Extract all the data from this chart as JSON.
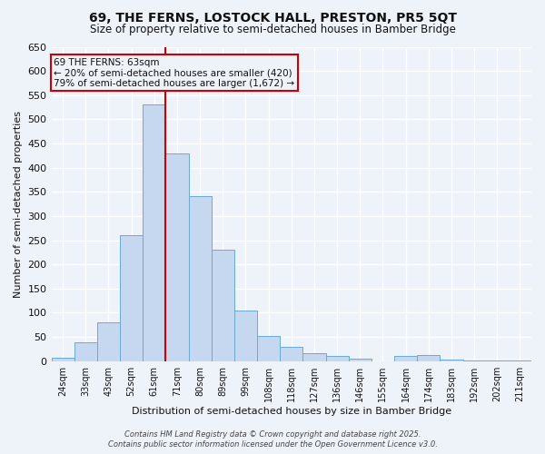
{
  "title": "69, THE FERNS, LOSTOCK HALL, PRESTON, PR5 5QT",
  "subtitle": "Size of property relative to semi-detached houses in Bamber Bridge",
  "xlabel": "Distribution of semi-detached houses by size in Bamber Bridge",
  "ylabel": "Number of semi-detached properties",
  "bar_categories": [
    "24sqm",
    "33sqm",
    "43sqm",
    "52sqm",
    "61sqm",
    "71sqm",
    "80sqm",
    "89sqm",
    "99sqm",
    "108sqm",
    "118sqm",
    "127sqm",
    "136sqm",
    "146sqm",
    "155sqm",
    "164sqm",
    "174sqm",
    "183sqm",
    "192sqm",
    "202sqm",
    "211sqm"
  ],
  "bar_values": [
    7,
    38,
    80,
    260,
    530,
    430,
    342,
    230,
    105,
    52,
    30,
    16,
    10,
    6,
    0,
    10,
    13,
    4,
    2,
    1,
    1
  ],
  "bar_color": "#c5d8f0",
  "bar_edge_color": "#6aaad4",
  "ylim": [
    0,
    650
  ],
  "yticks": [
    0,
    50,
    100,
    150,
    200,
    250,
    300,
    350,
    400,
    450,
    500,
    550,
    600,
    650
  ],
  "vline_color": "#cc0000",
  "vline_pos": 4.5,
  "annotation_title": "69 THE FERNS: 63sqm",
  "annotation_line1": "← 20% of semi-detached houses are smaller (420)",
  "annotation_line2": "79% of semi-detached houses are larger (1,672) →",
  "annotation_box_color": "#cc0000",
  "bg_color": "#eef2f9",
  "grid_color": "#ffffff",
  "footer1": "Contains HM Land Registry data © Crown copyright and database right 2025.",
  "footer2": "Contains public sector information licensed under the Open Government Licence v3.0."
}
